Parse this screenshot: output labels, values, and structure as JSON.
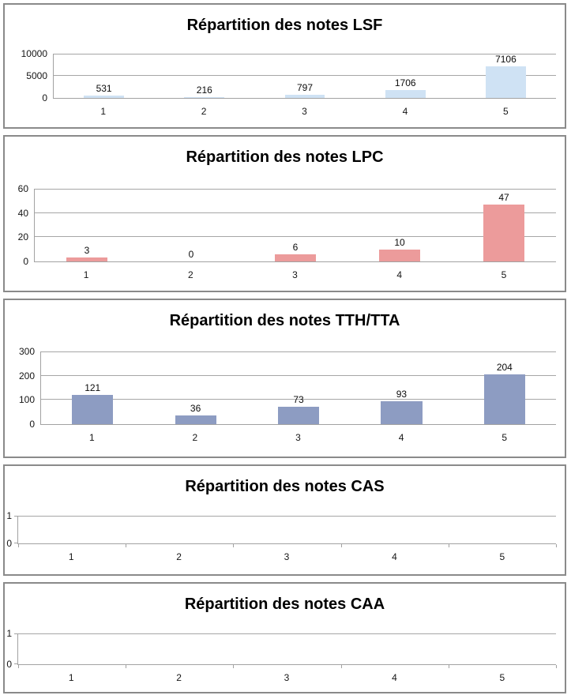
{
  "colors": {
    "panel_border": "#8a8a8a",
    "gridline": "#a6a6a6",
    "axis": "#a2a2a2",
    "title_text": "#000000",
    "label_text": "#151515",
    "lsf_bar": "#cfe2f4",
    "lpc_bar": "#ec9b9b",
    "tth_bar": "#8d9cc2"
  },
  "chart_data": [
    {
      "type": "bar",
      "key": "LSF",
      "title": "Répartition des notes LSF",
      "categories": [
        "1",
        "2",
        "3",
        "4",
        "5"
      ],
      "values": [
        531,
        216,
        797,
        1706,
        7106
      ],
      "data_labels": [
        "531",
        "216",
        "797",
        "1706",
        "7106"
      ],
      "ylim": [
        0,
        10000
      ],
      "yticks": [
        0,
        5000,
        10000
      ],
      "ytick_labels": [
        "0",
        "5000",
        "10000"
      ],
      "bar_color": "#cfe2f4",
      "grid": true,
      "legend": "none",
      "xlabel": "",
      "ylabel": ""
    },
    {
      "type": "bar",
      "key": "LPC",
      "title": "Répartition des notes LPC",
      "categories": [
        "1",
        "2",
        "3",
        "4",
        "5"
      ],
      "values": [
        3,
        0,
        6,
        10,
        47
      ],
      "data_labels": [
        "3",
        "0",
        "6",
        "10",
        "47"
      ],
      "ylim": [
        0,
        60
      ],
      "yticks": [
        0,
        20,
        40,
        60
      ],
      "ytick_labels": [
        "0",
        "20",
        "40",
        "60"
      ],
      "bar_color": "#ec9b9b",
      "grid": true,
      "legend": "none",
      "xlabel": "",
      "ylabel": ""
    },
    {
      "type": "bar",
      "key": "TTH/TTA",
      "title": "Répartition des notes TTH/TTA",
      "categories": [
        "1",
        "2",
        "3",
        "4",
        "5"
      ],
      "values": [
        121,
        36,
        73,
        93,
        204
      ],
      "data_labels": [
        "121",
        "36",
        "73",
        "93",
        "204"
      ],
      "ylim": [
        0,
        300
      ],
      "yticks": [
        0,
        100,
        200,
        300
      ],
      "ytick_labels": [
        "0",
        "100",
        "200",
        "300"
      ],
      "bar_color": "#8d9cc2",
      "grid": true,
      "legend": "none",
      "xlabel": "",
      "ylabel": ""
    },
    {
      "type": "bar",
      "key": "CAS",
      "title": "Répartition des notes CAS",
      "categories": [
        "1",
        "2",
        "3",
        "4",
        "5"
      ],
      "values": [],
      "data_labels": [],
      "ylim": [
        0,
        1
      ],
      "yticks": [
        0,
        1
      ],
      "ytick_labels": [
        "0",
        "1"
      ],
      "bar_color": "",
      "grid": true,
      "legend": "none",
      "xlabel": "",
      "ylabel": ""
    },
    {
      "type": "bar",
      "key": "CAA",
      "title": "Répartition des notes CAA",
      "categories": [
        "1",
        "2",
        "3",
        "4",
        "5"
      ],
      "values": [],
      "data_labels": [],
      "ylim": [
        0,
        1
      ],
      "yticks": [
        0,
        1
      ],
      "ytick_labels": [
        "0",
        "1"
      ],
      "bar_color": "",
      "grid": true,
      "legend": "none",
      "xlabel": "",
      "ylabel": ""
    }
  ]
}
